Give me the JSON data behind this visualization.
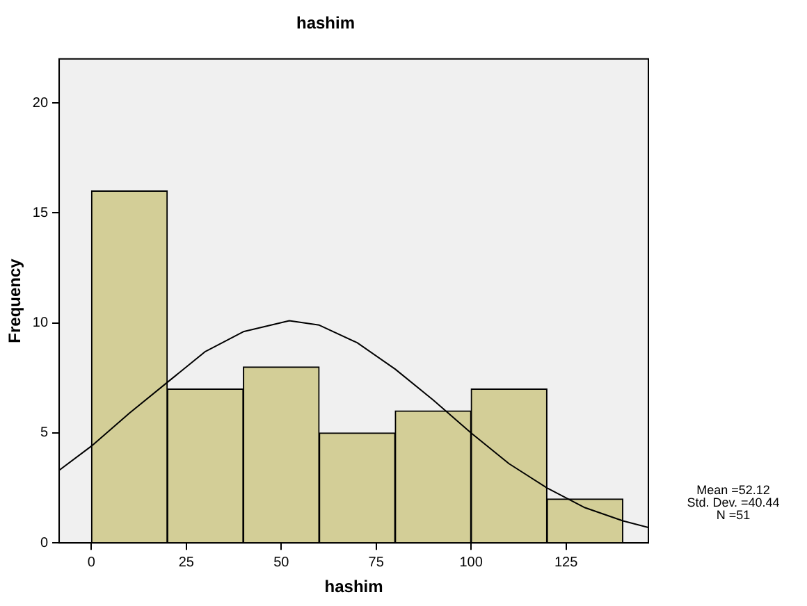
{
  "chart_data": {
    "type": "histogram",
    "title": "hashim",
    "xlabel": "hashim",
    "ylabel": "Frequency",
    "bins": [
      0,
      20,
      40,
      60,
      80,
      100,
      120,
      140
    ],
    "values": [
      16,
      7,
      8,
      5,
      6,
      7,
      2
    ],
    "color": "#d3ce97",
    "series": [
      {
        "type": "line",
        "color": "#000000",
        "x": [
          -8.5,
          0,
          10,
          20,
          30,
          40,
          52.12,
          60,
          70,
          80,
          90,
          100,
          110,
          120,
          130,
          140,
          146.7
        ],
        "values": [
          3.3,
          4.4,
          5.9,
          7.3,
          8.7,
          9.6,
          10.1,
          9.9,
          9.1,
          7.9,
          6.5,
          5.0,
          3.6,
          2.5,
          1.6,
          1.0,
          0.7
        ]
      }
    ],
    "xlim": [
      -8.5,
      146.7
    ],
    "ylim": [
      0,
      22
    ],
    "xticks": [
      0,
      25,
      50,
      75,
      100,
      125
    ],
    "yticks": [
      0,
      5,
      10,
      15,
      20
    ],
    "grid": false,
    "legend": false,
    "annotations": [
      "Mean =52.12",
      "Std. Dev. =40.44",
      "N =51"
    ]
  }
}
